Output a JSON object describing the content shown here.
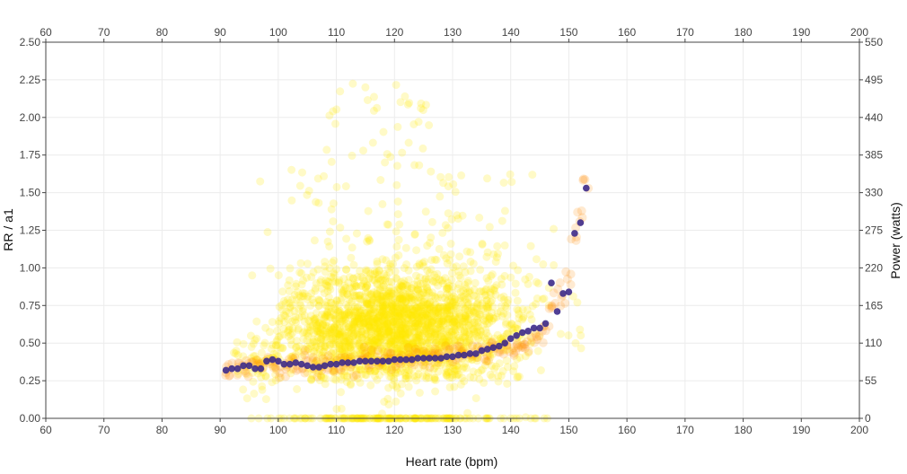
{
  "chart_data": {
    "type": "scatter",
    "xlabel": "Heart rate (bpm)",
    "ylabel": "RR / a1",
    "y2label": "Power (watts)",
    "xlim": [
      60,
      200
    ],
    "ylim": [
      0,
      2.5
    ],
    "y2lim": [
      0,
      550
    ],
    "x_ticks": [
      "60",
      "70",
      "80",
      "90",
      "100",
      "110",
      "120",
      "130",
      "140",
      "150",
      "160",
      "170",
      "180",
      "190",
      "200"
    ],
    "y_ticks": [
      "0.00",
      "0.25",
      "0.50",
      "0.75",
      "1.00",
      "1.25",
      "1.50",
      "1.75",
      "2.00",
      "2.25",
      "2.50"
    ],
    "y2_ticks": [
      "0",
      "55",
      "110",
      "165",
      "220",
      "275",
      "330",
      "385",
      "440",
      "495",
      "550"
    ],
    "grid": true,
    "colors": {
      "power": "#ffe600",
      "rr": "#ff8c00",
      "a1": "#3d2a8a",
      "grid": "#ececec",
      "axis": "#444444"
    },
    "series": [
      {
        "role": "a1",
        "axis": "left",
        "x": [
          91,
          92,
          93,
          94,
          95,
          96,
          97,
          98,
          99,
          100,
          101,
          102,
          103,
          104,
          105,
          106,
          107,
          108,
          109,
          110,
          111,
          112,
          113,
          114,
          115,
          116,
          117,
          118,
          119,
          120,
          121,
          122,
          123,
          124,
          125,
          126,
          127,
          128,
          129,
          130,
          131,
          132,
          133,
          134,
          135,
          136,
          137,
          138,
          139,
          140,
          141,
          142,
          143,
          144,
          145,
          146,
          147,
          148,
          149,
          150,
          151,
          152,
          153
        ],
        "y": [
          0.32,
          0.33,
          0.33,
          0.35,
          0.35,
          0.33,
          0.33,
          0.38,
          0.39,
          0.38,
          0.36,
          0.36,
          0.37,
          0.36,
          0.35,
          0.34,
          0.34,
          0.35,
          0.36,
          0.36,
          0.37,
          0.37,
          0.37,
          0.38,
          0.38,
          0.38,
          0.38,
          0.38,
          0.38,
          0.39,
          0.39,
          0.39,
          0.39,
          0.4,
          0.4,
          0.4,
          0.4,
          0.4,
          0.41,
          0.41,
          0.42,
          0.42,
          0.43,
          0.43,
          0.45,
          0.46,
          0.47,
          0.48,
          0.5,
          0.53,
          0.55,
          0.57,
          0.58,
          0.6,
          0.6,
          0.63,
          0.9,
          0.71,
          0.83,
          0.84,
          1.23,
          1.3,
          1.53
        ]
      },
      {
        "role": "rr",
        "axis": "left",
        "x": [
          91,
          92,
          93,
          94,
          95,
          96,
          97,
          98,
          99,
          100,
          101,
          102,
          103,
          104,
          105,
          106,
          107,
          108,
          109,
          110,
          111,
          112,
          113,
          114,
          115,
          116,
          117,
          118,
          119,
          120,
          121,
          122,
          123,
          124,
          125,
          126,
          127,
          128,
          129,
          130,
          131,
          132,
          133,
          134,
          135,
          136,
          137,
          138,
          139,
          140,
          141,
          142,
          143,
          144,
          145,
          146,
          147,
          148,
          149,
          150,
          151,
          152,
          153
        ],
        "y": [
          0.31,
          0.32,
          0.34,
          0.33,
          0.36,
          0.35,
          0.31,
          0.4,
          0.37,
          0.34,
          0.33,
          0.35,
          0.37,
          0.32,
          0.38,
          0.36,
          0.33,
          0.34,
          0.39,
          0.35,
          0.36,
          0.38,
          0.34,
          0.37,
          0.4,
          0.36,
          0.39,
          0.38,
          0.41,
          0.37,
          0.4,
          0.42,
          0.38,
          0.41,
          0.43,
          0.39,
          0.42,
          0.41,
          0.44,
          0.4,
          0.43,
          0.45,
          0.42,
          0.44,
          0.46,
          0.43,
          0.47,
          0.45,
          0.48,
          0.44,
          0.47,
          0.5,
          0.46,
          0.52,
          0.55,
          0.6,
          0.75,
          0.85,
          0.8,
          0.95,
          1.2,
          1.35,
          1.58
        ]
      },
      {
        "role": "power",
        "axis": "right",
        "count": 2600,
        "hr_range": [
          91,
          153
        ],
        "typical_watts": 140,
        "max_watts": 500
      }
    ]
  }
}
